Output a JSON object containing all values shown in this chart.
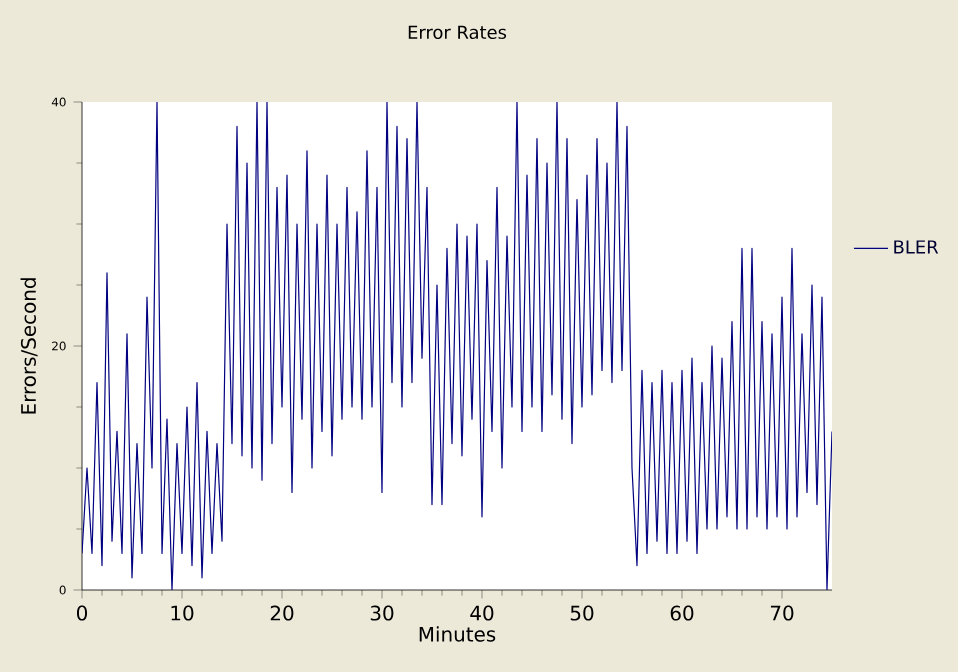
{
  "chart_data": {
    "type": "line",
    "title": "Error Rates",
    "xlabel": "Minutes",
    "ylabel": "Errors/Second",
    "xlim": [
      0,
      75
    ],
    "ylim": [
      0,
      40
    ],
    "xticks": [
      0,
      10,
      20,
      30,
      40,
      50,
      60,
      70
    ],
    "yticks": [
      0,
      20,
      40
    ],
    "grid": false,
    "legend": "right",
    "marker": "none",
    "line_style": "solid",
    "series": [
      {
        "name": "BLER",
        "color": "#000080",
        "x": [
          0,
          0.5,
          1,
          1.5,
          2,
          2.5,
          3,
          3.5,
          4,
          4.5,
          5,
          5.5,
          6,
          6.5,
          7,
          7.5,
          8,
          8.5,
          9,
          9.5,
          10,
          10.5,
          11,
          11.5,
          12,
          12.5,
          13,
          13.5,
          14,
          14.5,
          15,
          15.5,
          16,
          16.5,
          17,
          17.5,
          18,
          18.5,
          19,
          19.5,
          20,
          20.5,
          21,
          21.5,
          22,
          22.5,
          23,
          23.5,
          24,
          24.5,
          25,
          25.5,
          26,
          26.5,
          27,
          27.5,
          28,
          28.5,
          29,
          29.5,
          30,
          30.5,
          31,
          31.5,
          32,
          32.5,
          33,
          33.5,
          34,
          34.5,
          35,
          35.5,
          36,
          36.5,
          37,
          37.5,
          38,
          38.5,
          39,
          39.5,
          40,
          40.5,
          41,
          41.5,
          42,
          42.5,
          43,
          43.5,
          44,
          44.5,
          45,
          45.5,
          46,
          46.5,
          47,
          47.5,
          48,
          48.5,
          49,
          49.5,
          50,
          50.5,
          51,
          51.5,
          52,
          52.5,
          53,
          53.5,
          54,
          54.5,
          55,
          55.5,
          56,
          56.5,
          57,
          57.5,
          58,
          58.5,
          59,
          59.5,
          60,
          60.5,
          61,
          61.5,
          62,
          62.5,
          63,
          63.5,
          64,
          64.5,
          65,
          65.5,
          66,
          66.5,
          67,
          67.5,
          68,
          68.5,
          69,
          69.5,
          70,
          70.5,
          71,
          71.5,
          72,
          72.5,
          73,
          73.5,
          74,
          74.5,
          75
        ],
        "values": [
          3,
          10,
          3,
          17,
          2,
          26,
          4,
          13,
          3,
          21,
          1,
          12,
          3,
          24,
          10,
          40,
          3,
          14,
          0,
          12,
          3,
          15,
          2,
          17,
          1,
          13,
          3,
          12,
          4,
          30,
          12,
          38,
          11,
          35,
          10,
          40,
          9,
          40,
          12,
          33,
          15,
          34,
          8,
          30,
          14,
          36,
          10,
          30,
          13,
          34,
          11,
          30,
          14,
          33,
          15,
          31,
          14,
          36,
          15,
          33,
          8,
          40,
          17,
          38,
          15,
          37,
          17,
          40,
          19,
          33,
          7,
          25,
          7,
          28,
          12,
          30,
          11,
          29,
          14,
          30,
          6,
          27,
          13,
          33,
          10,
          29,
          15,
          40,
          13,
          34,
          15,
          37,
          13,
          35,
          16,
          40,
          14,
          37,
          12,
          32,
          15,
          34,
          16,
          37,
          18,
          35,
          17,
          40,
          18,
          38,
          10,
          2,
          18,
          3,
          17,
          4,
          18,
          3,
          17,
          3,
          18,
          4,
          19,
          3,
          17,
          5,
          20,
          5,
          19,
          6,
          22,
          5,
          28,
          5,
          28,
          6,
          22,
          5,
          21,
          6,
          24,
          5,
          28,
          6,
          21,
          8,
          25,
          7,
          24,
          0,
          13
        ]
      }
    ]
  }
}
